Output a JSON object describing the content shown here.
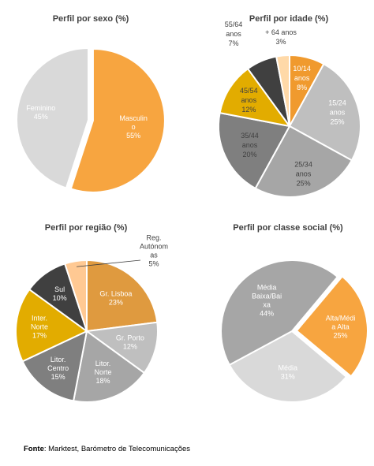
{
  "source": {
    "label": "Fonte",
    "text": ": Marktest, Barómetro de Telecomunicações"
  },
  "chart_data": [
    {
      "type": "pie",
      "title": "Perfil por sexo (%)",
      "slices": [
        {
          "label": [
            "Masculin",
            "o",
            "55%"
          ],
          "value": 55,
          "color": "#F7A540",
          "text_color": "#ffffff",
          "explode": 6
        },
        {
          "label": [
            "Feminino",
            "45%"
          ],
          "value": 45,
          "color": "#D9D9D9",
          "text_color": "#ffffff",
          "explode": 0
        }
      ]
    },
    {
      "type": "pie",
      "title": "Perfil por idade (%)",
      "slices": [
        {
          "label": [
            "10/14",
            "anos",
            "8%"
          ],
          "value": 8,
          "color": "#F09A2E",
          "text_color": "#ffffff",
          "explode": 0
        },
        {
          "label": [
            "15/24",
            "anos",
            "25%"
          ],
          "value": 25,
          "color": "#BFBFBF",
          "text_color": "#ffffff",
          "explode": 0
        },
        {
          "label": [
            "25/34",
            "anos",
            "25%"
          ],
          "value": 25,
          "color": "#A6A6A6",
          "text_color": "#404040",
          "explode": 0
        },
        {
          "label": [
            "35/44",
            "anos",
            "20%"
          ],
          "value": 20,
          "color": "#7F7F7F",
          "text_color": "#404040",
          "explode": 0
        },
        {
          "label": [
            "45/54",
            "anos",
            "12%"
          ],
          "value": 12,
          "color": "#E2AC00",
          "text_color": "#404040",
          "explode": 0
        },
        {
          "label": [
            "55/64",
            "anos",
            "7%"
          ],
          "value": 7,
          "color": "#404040",
          "text_color": "#404040",
          "explode": 0,
          "outside": true
        },
        {
          "label": [
            "+ 64 anos",
            "3%"
          ],
          "value": 3,
          "color": "#FFD9A8",
          "text_color": "#404040",
          "explode": 0,
          "outside": true
        }
      ]
    },
    {
      "type": "pie",
      "title": "Perfil por região (%)",
      "slices": [
        {
          "label": [
            "Gr. Lisboa",
            "23%"
          ],
          "value": 23,
          "color": "#DF9A3F",
          "text_color": "#ffffff",
          "explode": 0
        },
        {
          "label": [
            "Gr. Porto",
            "12%"
          ],
          "value": 12,
          "color": "#BFBFBF",
          "text_color": "#ffffff",
          "explode": 0
        },
        {
          "label": [
            "Litor.",
            "Norte",
            "18%"
          ],
          "value": 18,
          "color": "#A6A6A6",
          "text_color": "#ffffff",
          "explode": 0
        },
        {
          "label": [
            "Litor.",
            "Centro",
            "15%"
          ],
          "value": 15,
          "color": "#7F7F7F",
          "text_color": "#ffffff",
          "explode": 0
        },
        {
          "label": [
            "Inter.",
            "Norte",
            "17%"
          ],
          "value": 17,
          "color": "#E2AC00",
          "text_color": "#ffffff",
          "explode": 0
        },
        {
          "label": [
            "Sul",
            "10%"
          ],
          "value": 10,
          "color": "#404040",
          "text_color": "#ffffff",
          "explode": 0
        },
        {
          "label": [
            "Reg.",
            "Autónom",
            "as",
            "5%"
          ],
          "value": 5,
          "color": "#FFC993",
          "text_color": "#404040",
          "explode": 0,
          "outside": true
        }
      ]
    },
    {
      "type": "pie",
      "title": "Perfil por classe social (%)",
      "slices": [
        {
          "label": [
            "Alta/Médi",
            "a Alta",
            "25%"
          ],
          "value": 25,
          "color": "#F7A540",
          "text_color": "#ffffff",
          "explode": 6
        },
        {
          "label": [
            "Média",
            "31%"
          ],
          "value": 31,
          "color": "#D9D9D9",
          "text_color": "#ffffff",
          "explode": 0
        },
        {
          "label": [
            "Média",
            "Baixa/Bai",
            "xa",
            "44%"
          ],
          "value": 44,
          "color": "#A6A6A6",
          "text_color": "#ffffff",
          "explode": 0
        }
      ]
    }
  ]
}
